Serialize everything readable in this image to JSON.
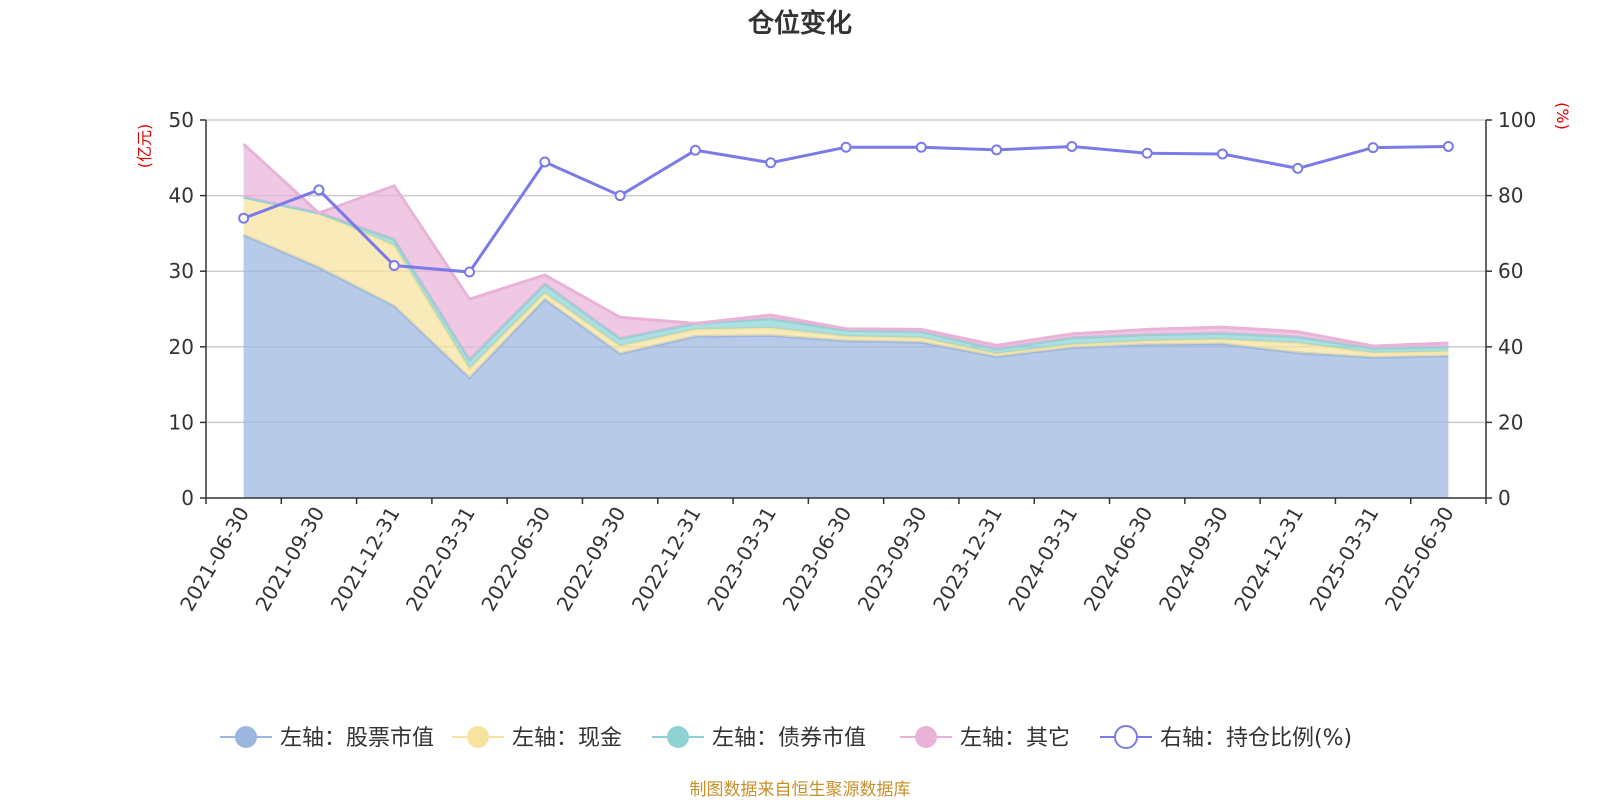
{
  "chart_data": {
    "type": "area",
    "title": "仓位变化",
    "footer": "制图数据来自恒生聚源数据库",
    "left_axis": {
      "unit": "(亿元)",
      "ylim": [
        0,
        50
      ],
      "ticks": [
        0,
        10,
        20,
        30,
        40,
        50
      ]
    },
    "right_axis": {
      "unit": "(%)",
      "ylim": [
        0,
        100
      ],
      "ticks": [
        0,
        20,
        40,
        60,
        80,
        100
      ]
    },
    "categories": [
      "2021-06-30",
      "2021-09-30",
      "2021-12-31",
      "2022-03-31",
      "2022-06-30",
      "2022-09-30",
      "2022-12-31",
      "2023-03-31",
      "2023-06-30",
      "2023-09-30",
      "2023-12-31",
      "2024-03-31",
      "2024-06-30",
      "2024-09-30",
      "2024-12-31",
      "2025-03-31",
      "2025-06-30"
    ],
    "stacked_series": [
      {
        "name": "左轴：股票市值",
        "color": "#9bb7e0",
        "values": [
          34.8,
          30.5,
          25.4,
          15.9,
          26.3,
          19.1,
          21.4,
          21.5,
          20.8,
          20.6,
          18.7,
          19.9,
          20.3,
          20.4,
          19.2,
          18.6,
          18.8
        ]
      },
      {
        "name": "左轴：现金",
        "color": "#f7e2a0",
        "values": [
          5.0,
          7.2,
          8.0,
          1.2,
          0.8,
          1.0,
          0.9,
          1.0,
          0.6,
          0.6,
          0.4,
          0.4,
          0.5,
          0.6,
          1.3,
          0.6,
          0.6
        ]
      },
      {
        "name": "左轴：债券市值",
        "color": "#8ed2d4",
        "values": [
          0.0,
          0.0,
          0.8,
          1.2,
          1.2,
          1.0,
          0.8,
          1.2,
          0.8,
          0.8,
          0.6,
          0.9,
          0.8,
          0.8,
          0.8,
          0.6,
          0.6
        ]
      },
      {
        "name": "左轴：其它",
        "color": "#e9b3d8",
        "values": [
          7.0,
          0.0,
          7.1,
          8.0,
          1.2,
          2.8,
          0.0,
          0.5,
          0.2,
          0.3,
          0.5,
          0.5,
          0.7,
          0.8,
          0.7,
          0.3,
          0.5
        ]
      }
    ],
    "line_series": {
      "name": "右轴：持仓比例(%)",
      "color": "#7a7ae8",
      "values": [
        74.0,
        81.5,
        61.5,
        59.8,
        88.9,
        80.0,
        92.0,
        88.7,
        92.8,
        92.8,
        92.1,
        93.0,
        91.2,
        91.0,
        87.2,
        92.7,
        93.0
      ]
    }
  }
}
